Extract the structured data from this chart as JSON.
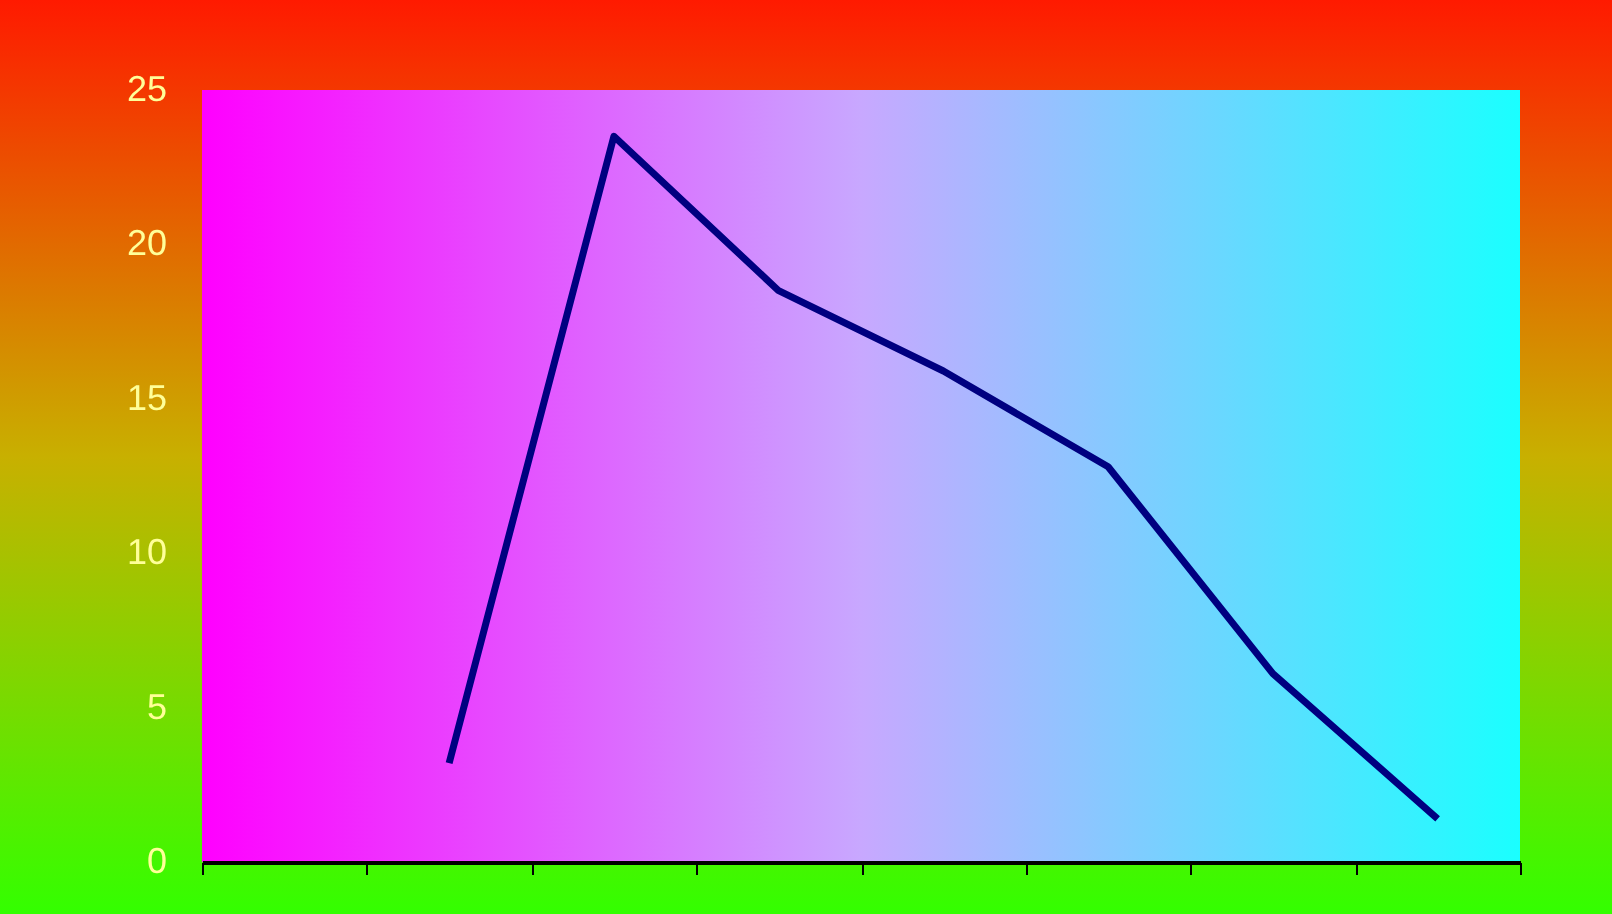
{
  "chart_data": {
    "type": "line",
    "categories": [
      null,
      null,
      null,
      null,
      null,
      null,
      null,
      null
    ],
    "values": [
      null,
      3.2,
      23.5,
      18.5,
      15.9,
      12.8,
      6.1,
      1.4
    ],
    "color": "#000080",
    "ylim": [
      0,
      25
    ],
    "yticks": [
      0,
      5,
      10,
      15,
      20,
      25
    ],
    "grid": false
  }
}
